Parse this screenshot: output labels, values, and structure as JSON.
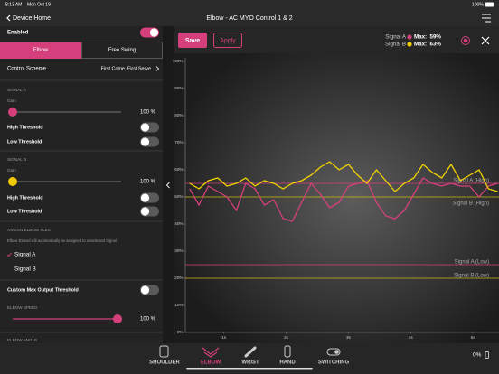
{
  "status_bar": {
    "time": "8:13 AM",
    "date": "Mon Oct 19",
    "battery": "100%"
  },
  "header": {
    "back": "Device Home",
    "title": "Elbow - AC MYO Control 1 & 2"
  },
  "settings": {
    "enabled": "Enabled",
    "tabs": [
      "Elbow",
      "Free Swing"
    ],
    "control_scheme": "Control Scheme",
    "control_scheme_value": "First Come, First Serve",
    "signal_a": "SIGNAL A",
    "gain_a": "Gain",
    "gain_a_value": "100 %",
    "high_a": "High Threshold",
    "low_a": "Low Threshold",
    "signal_b": "SIGNAL B",
    "gain_b": "Gain",
    "gain_b_value": "100 %",
    "high_b": "High Threshold",
    "low_b": "Low Threshold",
    "assign": "ASSIGN ELBOW FLEX",
    "assign_note": "Elbow Extend will automatically be assigned to unselected Signal",
    "options": [
      "Signal A",
      "Signal B"
    ],
    "custom_max": "Custom Max Output Threshold",
    "speed": "ELBOW SPEED",
    "speed_value": "100 %",
    "angle": "ELBOW ANGLE"
  },
  "toolbar": {
    "save": "Save",
    "apply": "Apply",
    "max_labels": [
      "Max:  59%",
      "Max:  63%"
    ]
  },
  "chart_data": {
    "type": "line",
    "x": [
      0.45,
      0.6,
      0.75,
      0.9,
      1.05,
      1.2,
      1.35,
      1.5,
      1.65,
      1.8,
      1.95,
      2.1,
      2.25,
      2.4,
      2.55,
      2.7,
      2.85,
      3.0,
      3.15,
      3.3,
      3.45,
      3.6,
      3.75,
      3.9,
      4.05,
      4.2,
      4.35,
      4.5,
      4.65,
      4.8,
      4.95,
      5.1,
      5.25,
      5.4
    ],
    "series": [
      {
        "name": "Signal A",
        "color": "#d5407c",
        "values": [
          53,
          47,
          54,
          52,
          50,
          45,
          55,
          53,
          47,
          49,
          42,
          41,
          48,
          55,
          51,
          46,
          48,
          54,
          55,
          56,
          48,
          43,
          42,
          45,
          51,
          57,
          55,
          54,
          55,
          54,
          54,
          50,
          54,
          55
        ]
      },
      {
        "name": "Signal B",
        "color": "#f2d300",
        "values": [
          55,
          53,
          56,
          57,
          54,
          55,
          57,
          54,
          56,
          55,
          53,
          55,
          56,
          58,
          61,
          63,
          60,
          62,
          58,
          55,
          60,
          56,
          52,
          55,
          57,
          62,
          59,
          57,
          62,
          56,
          58,
          60,
          53,
          52
        ]
      }
    ],
    "thresholds": [
      {
        "name": "Signal A (High)",
        "value": 55,
        "color": "#d5407c"
      },
      {
        "name": "Signal B (High)",
        "value": 50,
        "color": "#cdbb10"
      },
      {
        "name": "Signal A (Low)",
        "value": 25,
        "color": "#d5407c"
      },
      {
        "name": "Signal B (Low)",
        "value": 20,
        "color": "#cdbb10"
      }
    ],
    "xlim": [
      0.38,
      5.42
    ],
    "ylim": [
      0,
      100
    ],
    "xticks": [
      {
        "value": 1,
        "label": "1s"
      },
      {
        "value": 2,
        "label": "2s"
      },
      {
        "value": 3,
        "label": "3s"
      },
      {
        "value": 4,
        "label": "4s"
      },
      {
        "value": 5,
        "label": "5s"
      }
    ],
    "yticks": [
      {
        "value": 0,
        "label": "0%"
      },
      {
        "value": 10,
        "label": "10%"
      },
      {
        "value": 20,
        "label": "20%"
      },
      {
        "value": 30,
        "label": "30%"
      },
      {
        "value": 40,
        "label": "40%"
      },
      {
        "value": 50,
        "label": "50%"
      },
      {
        "value": 60,
        "label": "60%"
      },
      {
        "value": 70,
        "label": "70%"
      },
      {
        "value": 80,
        "label": "80%"
      },
      {
        "value": 90,
        "label": "90%"
      },
      {
        "value": 100,
        "label": "100%"
      }
    ],
    "grid": false
  },
  "tab_bar": {
    "items": [
      "SHOULDER",
      "ELBOW",
      "WRIST",
      "HAND",
      "SWITCHING"
    ],
    "battery": "0%"
  }
}
